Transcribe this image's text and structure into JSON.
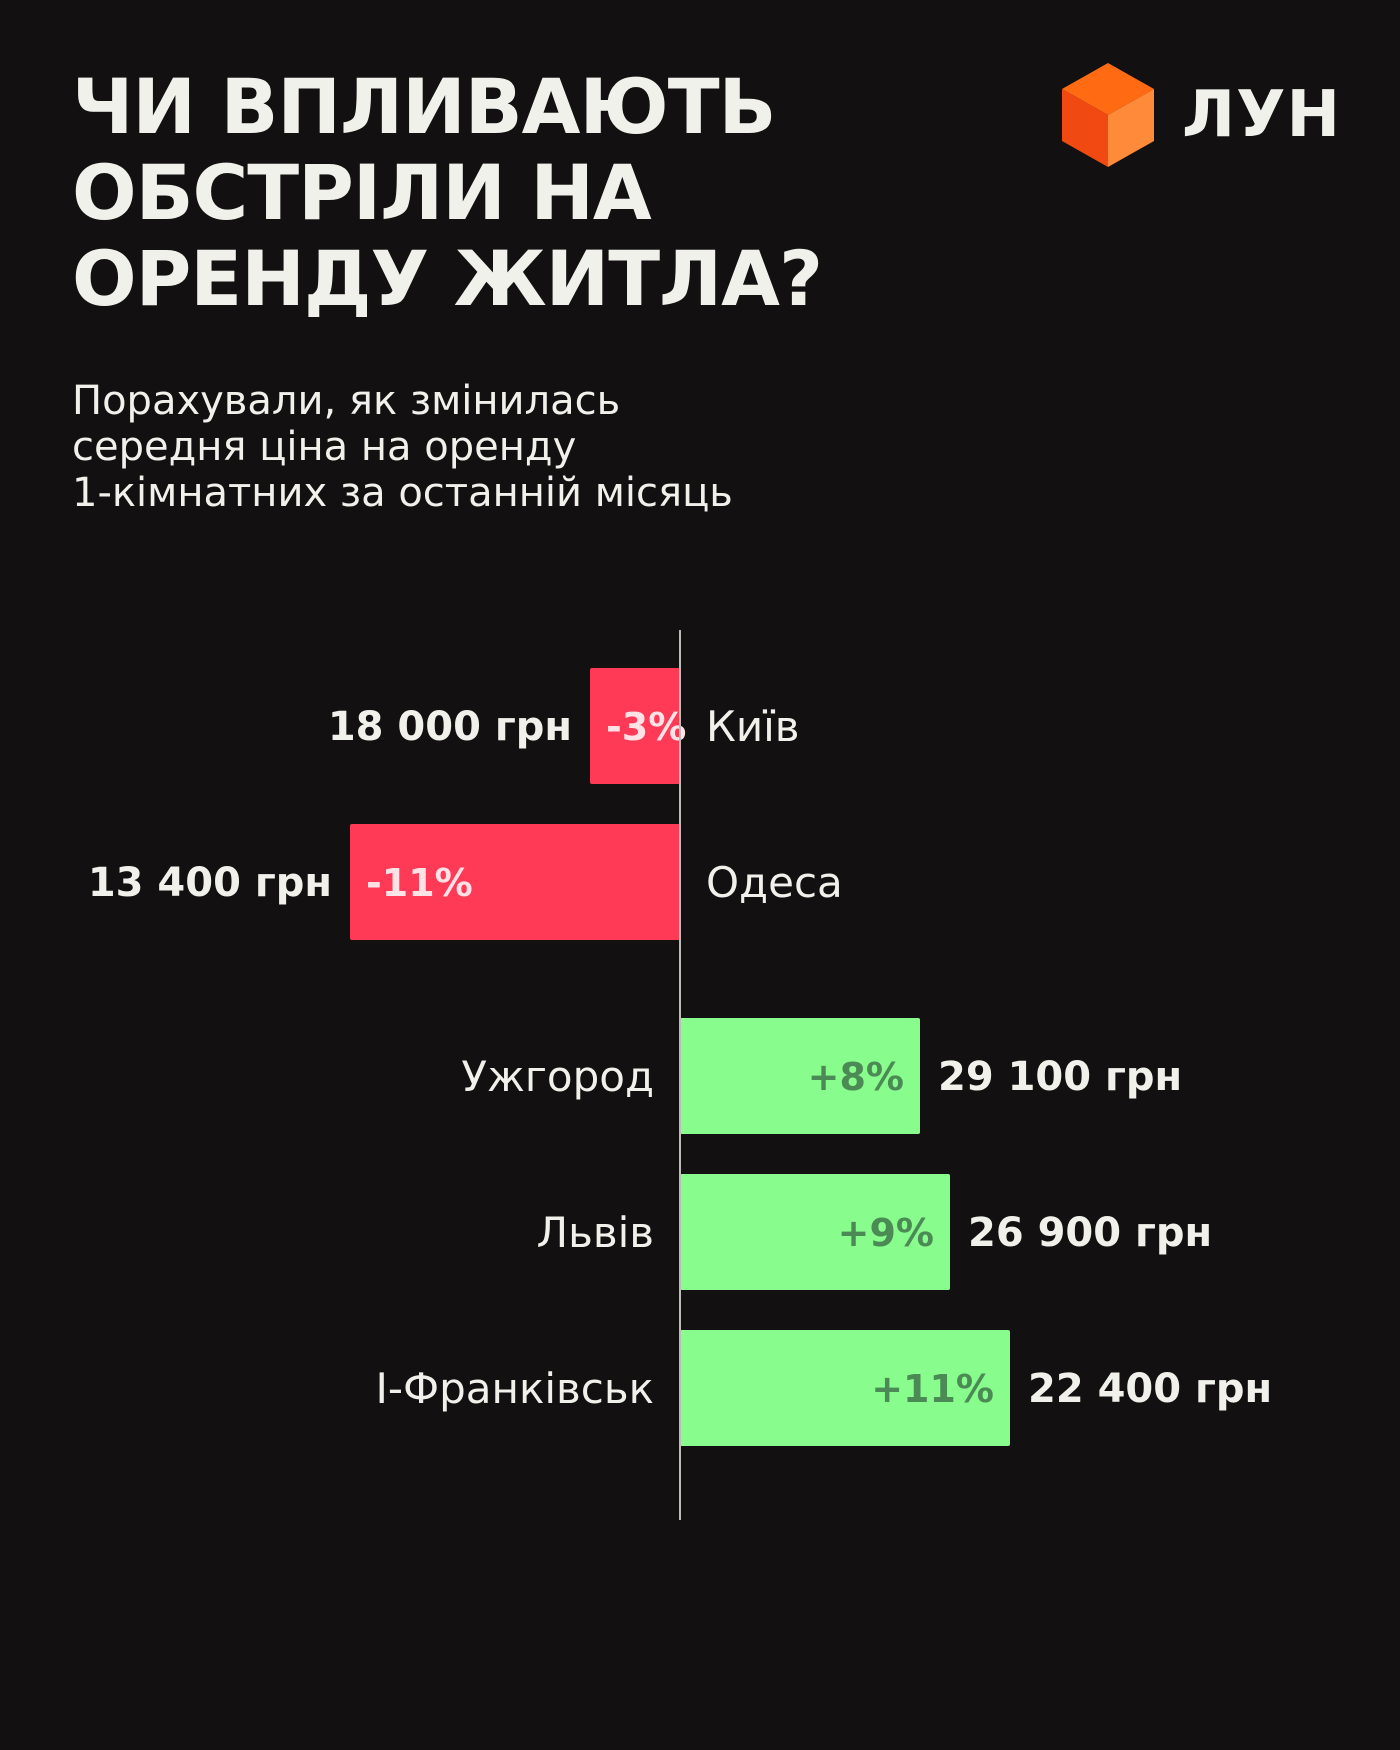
{
  "header": {
    "title_lines": [
      "ЧИ ВПЛИВАЮТЬ",
      "ОБСТРІЛИ НА",
      "ОРЕНДУ ЖИТЛА?"
    ],
    "subtitle_lines": [
      "Порахували, як змінилась",
      "середня ціна на оренду",
      "1-кімнатних за останній місяць"
    ]
  },
  "logo": {
    "text": "ЛУН",
    "icon": "orange-cube-icon",
    "colors": {
      "top": "#ff6a13",
      "left": "#f04a12",
      "right": "#ff8a3a"
    }
  },
  "colors": {
    "background": "#121010",
    "negative": "#ff3a57",
    "positive": "#88fc8c",
    "negative_label": "#ffe2e6",
    "positive_label": "#4b8a55",
    "text": "#f1f1ec",
    "axis": "#bdbdb8"
  },
  "chart_data": {
    "type": "bar",
    "orientation": "horizontal-diverging",
    "unit": "%",
    "categories": [
      "Київ",
      "Одеса",
      "Ужгород",
      "Львів",
      "І-Франківськ"
    ],
    "values": [
      -3,
      -11,
      8,
      9,
      11
    ],
    "value_labels": [
      "-3%",
      "-11%",
      "+8%",
      "+9%",
      "+11%"
    ],
    "price_labels": [
      "18 000 грн",
      "13 400 грн",
      "29 100 грн",
      "26 900 грн",
      "22 400 грн"
    ],
    "xlim": [
      -12,
      12
    ],
    "grid": false,
    "legend": "none"
  }
}
